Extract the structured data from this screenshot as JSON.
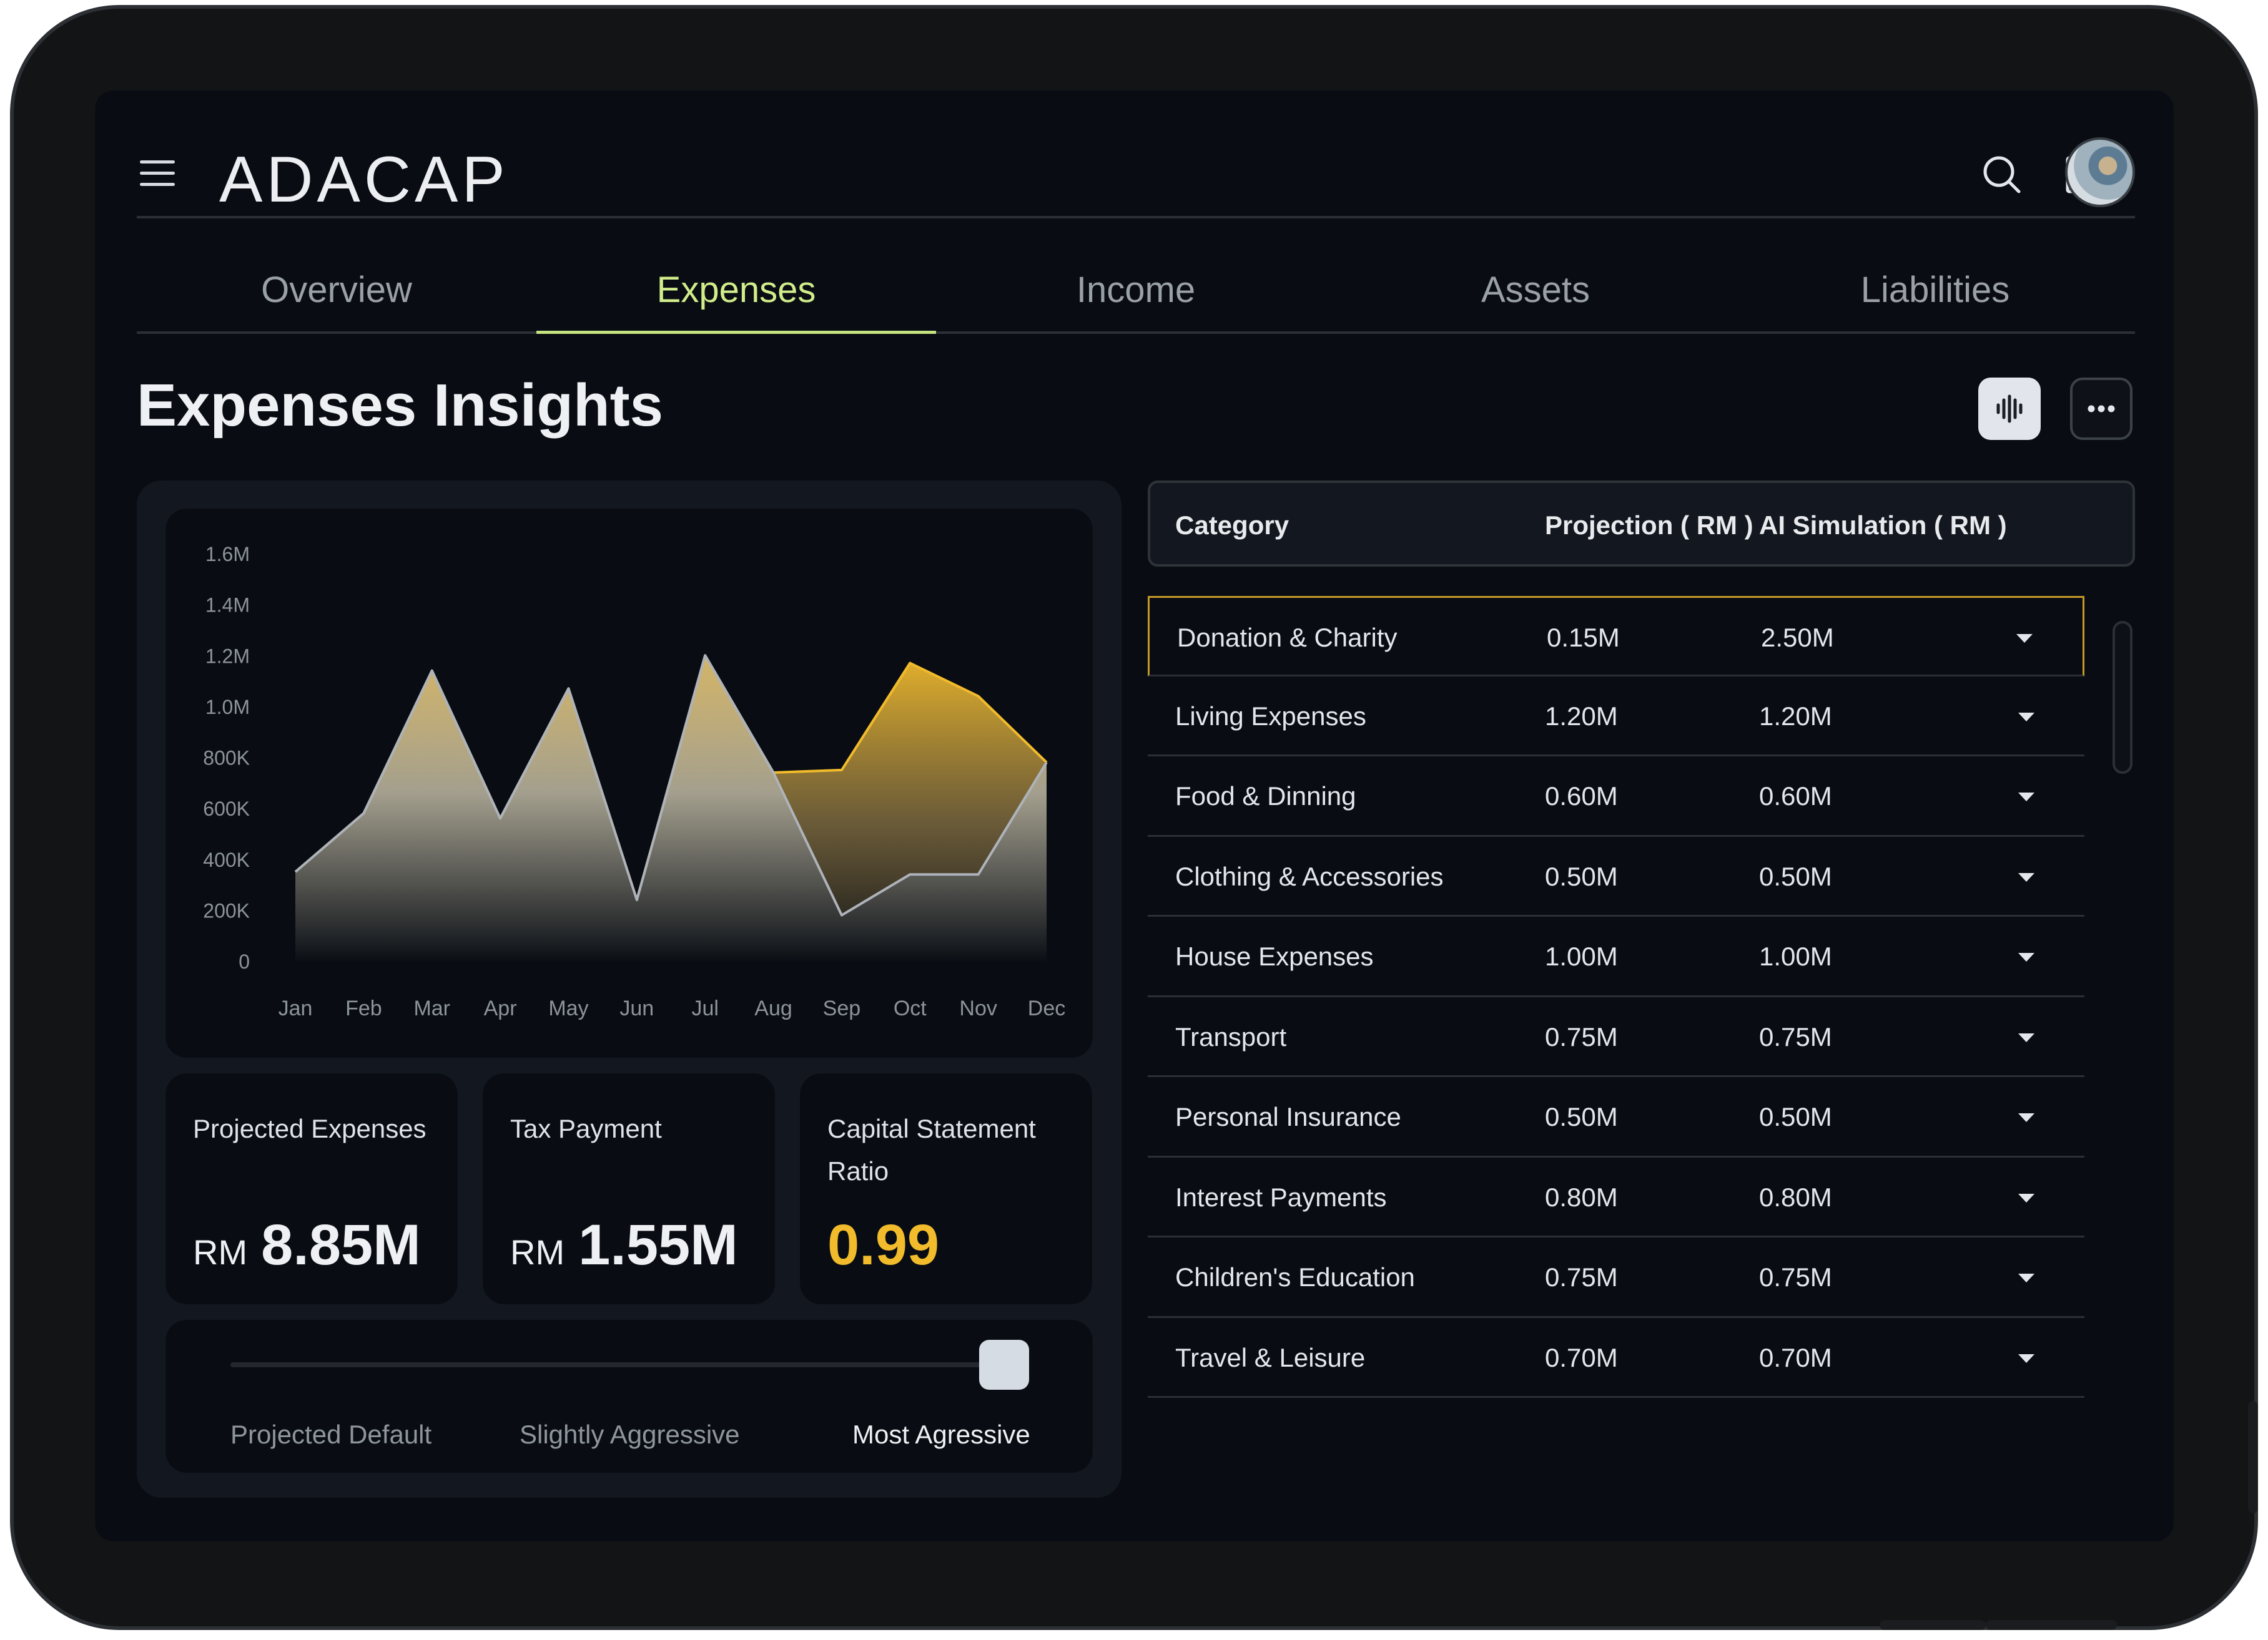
{
  "header": {
    "logo": "ADACAP",
    "icons": [
      "menu-icon",
      "search-icon",
      "grid-icon"
    ]
  },
  "tabs": [
    {
      "label": "Overview",
      "active": false
    },
    {
      "label": "Expenses",
      "active": true
    },
    {
      "label": "Income",
      "active": false
    },
    {
      "label": "Assets",
      "active": false
    },
    {
      "label": "Liabilities",
      "active": false
    }
  ],
  "page": {
    "title": "Expenses Insights"
  },
  "chart_data": {
    "type": "area",
    "categories": [
      "Jan",
      "Feb",
      "Mar",
      "Apr",
      "May",
      "Jun",
      "Jul",
      "Aug",
      "Sep",
      "Oct",
      "Nov",
      "Dec"
    ],
    "y_ticks": [
      "1.6M",
      "1.4M",
      "1.2M",
      "1.0M",
      "800K",
      "600K",
      "400K",
      "200K",
      "0"
    ],
    "ylim": [
      0,
      1600000
    ],
    "series": [
      {
        "values": [
          350000,
          580000,
          1140000,
          560000,
          1070000,
          240000,
          1200000,
          740000,
          750000,
          1170000,
          1040000,
          780000
        ],
        "color": "#f2bb2c"
      },
      {
        "values": [
          350000,
          580000,
          1140000,
          560000,
          1070000,
          240000,
          1200000,
          740000,
          180000,
          340000,
          340000,
          780000
        ],
        "color": "#aeb3ba"
      }
    ],
    "grid": false,
    "legend": "none"
  },
  "stats": [
    {
      "label": "Projected Expenses",
      "currency": "RM",
      "value": "8.85M"
    },
    {
      "label": "Tax Payment",
      "currency": "RM",
      "value": "1.55M"
    },
    {
      "label": "Capital Statement Ratio",
      "currency": "",
      "value": "0.99"
    }
  ],
  "slider": {
    "labels": [
      "Projected Default",
      "Slightly Aggressive",
      "Most Agressive"
    ],
    "selected": "Most Agressive",
    "level": 1.0
  },
  "table": {
    "headers": [
      "Category",
      "Projection ( RM )",
      "AI Simulation ( RM )"
    ],
    "rows": [
      {
        "category": "Donation & Charity",
        "projection": "0.15M",
        "ai": "2.50M"
      },
      {
        "category": "Living Expenses",
        "projection": "1.20M",
        "ai": "1.20M"
      },
      {
        "category": "Food & Dinning",
        "projection": "0.60M",
        "ai": "0.60M"
      },
      {
        "category": "Clothing & Accessories",
        "projection": "0.50M",
        "ai": "0.50M"
      },
      {
        "category": "House Expenses",
        "projection": "1.00M",
        "ai": "1.00M"
      },
      {
        "category": "Transport",
        "projection": "0.75M",
        "ai": "0.75M"
      },
      {
        "category": "Personal Insurance",
        "projection": "0.50M",
        "ai": "0.50M"
      },
      {
        "category": "Interest Payments",
        "projection": "0.80M",
        "ai": "0.80M"
      },
      {
        "category": "Children's Education",
        "projection": "0.75M",
        "ai": "0.75M"
      },
      {
        "category": "Travel & Leisure",
        "projection": "0.70M",
        "ai": "0.70M"
      }
    ]
  }
}
